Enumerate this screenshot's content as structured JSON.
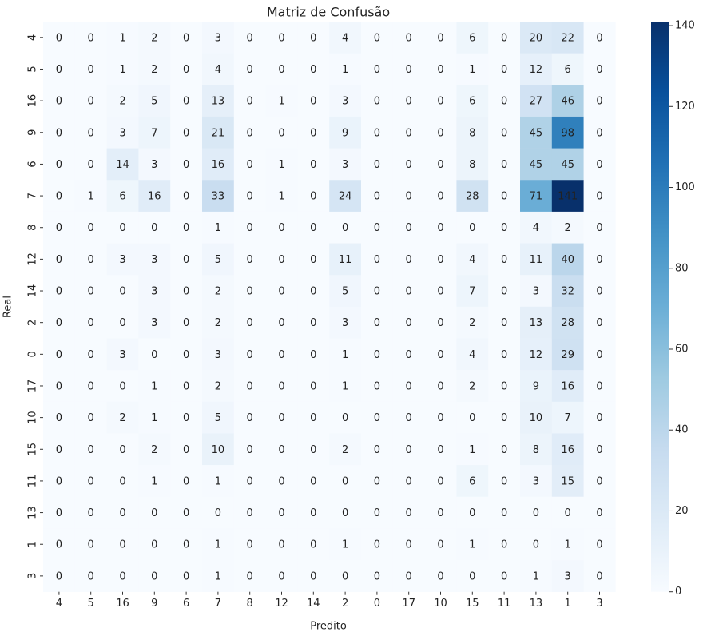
{
  "chart_data": {
    "type": "heatmap",
    "title": "Matriz de Confusão",
    "xlabel": "Predito",
    "ylabel": "Real",
    "x_categories": [
      "4",
      "5",
      "16",
      "9",
      "6",
      "7",
      "8",
      "12",
      "14",
      "2",
      "0",
      "17",
      "10",
      "15",
      "11",
      "13",
      "1",
      "3"
    ],
    "y_categories": [
      "4",
      "5",
      "16",
      "9",
      "6",
      "7",
      "8",
      "12",
      "14",
      "2",
      "0",
      "17",
      "10",
      "15",
      "11",
      "13",
      "1",
      "3"
    ],
    "values": [
      [
        0,
        0,
        1,
        2,
        0,
        3,
        0,
        0,
        0,
        4,
        0,
        0,
        0,
        6,
        0,
        20,
        22,
        0
      ],
      [
        0,
        0,
        1,
        2,
        0,
        4,
        0,
        0,
        0,
        1,
        0,
        0,
        0,
        1,
        0,
        12,
        6,
        0
      ],
      [
        0,
        0,
        2,
        5,
        0,
        13,
        0,
        1,
        0,
        3,
        0,
        0,
        0,
        6,
        0,
        27,
        46,
        0
      ],
      [
        0,
        0,
        3,
        7,
        0,
        21,
        0,
        0,
        0,
        9,
        0,
        0,
        0,
        8,
        0,
        45,
        98,
        0
      ],
      [
        0,
        0,
        14,
        3,
        0,
        16,
        0,
        1,
        0,
        3,
        0,
        0,
        0,
        8,
        0,
        45,
        45,
        0
      ],
      [
        0,
        1,
        6,
        16,
        0,
        33,
        0,
        1,
        0,
        24,
        0,
        0,
        0,
        28,
        0,
        71,
        141,
        0
      ],
      [
        0,
        0,
        0,
        0,
        0,
        1,
        0,
        0,
        0,
        0,
        0,
        0,
        0,
        0,
        0,
        4,
        2,
        0
      ],
      [
        0,
        0,
        3,
        3,
        0,
        5,
        0,
        0,
        0,
        11,
        0,
        0,
        0,
        4,
        0,
        11,
        40,
        0
      ],
      [
        0,
        0,
        0,
        3,
        0,
        2,
        0,
        0,
        0,
        5,
        0,
        0,
        0,
        7,
        0,
        3,
        32,
        0
      ],
      [
        0,
        0,
        0,
        3,
        0,
        2,
        0,
        0,
        0,
        3,
        0,
        0,
        0,
        2,
        0,
        13,
        28,
        0
      ],
      [
        0,
        0,
        3,
        0,
        0,
        3,
        0,
        0,
        0,
        1,
        0,
        0,
        0,
        4,
        0,
        12,
        29,
        0
      ],
      [
        0,
        0,
        0,
        1,
        0,
        2,
        0,
        0,
        0,
        1,
        0,
        0,
        0,
        2,
        0,
        9,
        16,
        0
      ],
      [
        0,
        0,
        2,
        1,
        0,
        5,
        0,
        0,
        0,
        0,
        0,
        0,
        0,
        0,
        0,
        10,
        7,
        0
      ],
      [
        0,
        0,
        0,
        2,
        0,
        10,
        0,
        0,
        0,
        2,
        0,
        0,
        0,
        1,
        0,
        8,
        16,
        0
      ],
      [
        0,
        0,
        0,
        1,
        0,
        1,
        0,
        0,
        0,
        0,
        0,
        0,
        0,
        6,
        0,
        3,
        15,
        0
      ],
      [
        0,
        0,
        0,
        0,
        0,
        0,
        0,
        0,
        0,
        0,
        0,
        0,
        0,
        0,
        0,
        0,
        0,
        0
      ],
      [
        0,
        0,
        0,
        0,
        0,
        1,
        0,
        0,
        0,
        1,
        0,
        0,
        0,
        1,
        0,
        0,
        1,
        0
      ],
      [
        0,
        0,
        0,
        0,
        0,
        1,
        0,
        0,
        0,
        0,
        0,
        0,
        0,
        0,
        0,
        1,
        3,
        0
      ]
    ],
    "colormap": "Blues",
    "zlim": [
      0,
      141
    ],
    "zticks": [
      0,
      20,
      40,
      60,
      80,
      100,
      120,
      140
    ]
  }
}
